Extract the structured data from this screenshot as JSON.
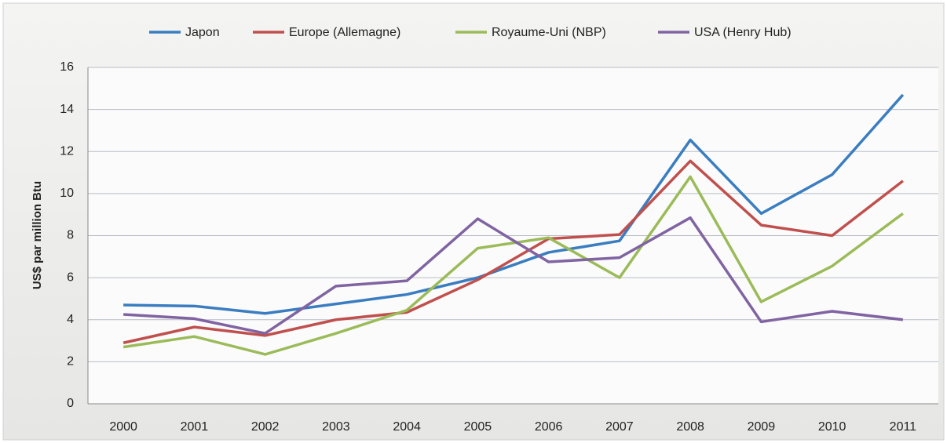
{
  "chart_data": {
    "type": "line",
    "y_label": "US$ par million Btu",
    "categories": [
      "2000",
      "2001",
      "2002",
      "2003",
      "2004",
      "2005",
      "2006",
      "2007",
      "2008",
      "2009",
      "2010",
      "2011"
    ],
    "series": [
      {
        "name": "Japon",
        "color": "#3a7dc0",
        "values": [
          4.7,
          4.65,
          4.3,
          4.75,
          5.2,
          6.0,
          7.2,
          7.75,
          12.55,
          9.05,
          10.9,
          14.7
        ]
      },
      {
        "name": "Europe (Allemagne)",
        "color": "#c0504d",
        "values": [
          2.9,
          3.65,
          3.25,
          4.0,
          4.35,
          5.9,
          7.85,
          8.05,
          11.55,
          8.5,
          8.0,
          10.6
        ]
      },
      {
        "name": "Royaume-Uni (NBP)",
        "color": "#9bbb59",
        "values": [
          2.7,
          3.2,
          2.35,
          3.35,
          4.45,
          7.4,
          7.9,
          6.0,
          10.8,
          4.85,
          6.55,
          9.05
        ]
      },
      {
        "name": "USA (Henry Hub)",
        "color": "#8064a2",
        "values": [
          4.25,
          4.05,
          3.35,
          5.6,
          5.85,
          8.8,
          6.75,
          6.95,
          8.85,
          3.9,
          4.4,
          4.0
        ]
      }
    ],
    "ylim": [
      0,
      16
    ],
    "yticks": [
      0,
      2,
      4,
      6,
      8,
      10,
      12,
      14,
      16
    ],
    "grid": true
  }
}
